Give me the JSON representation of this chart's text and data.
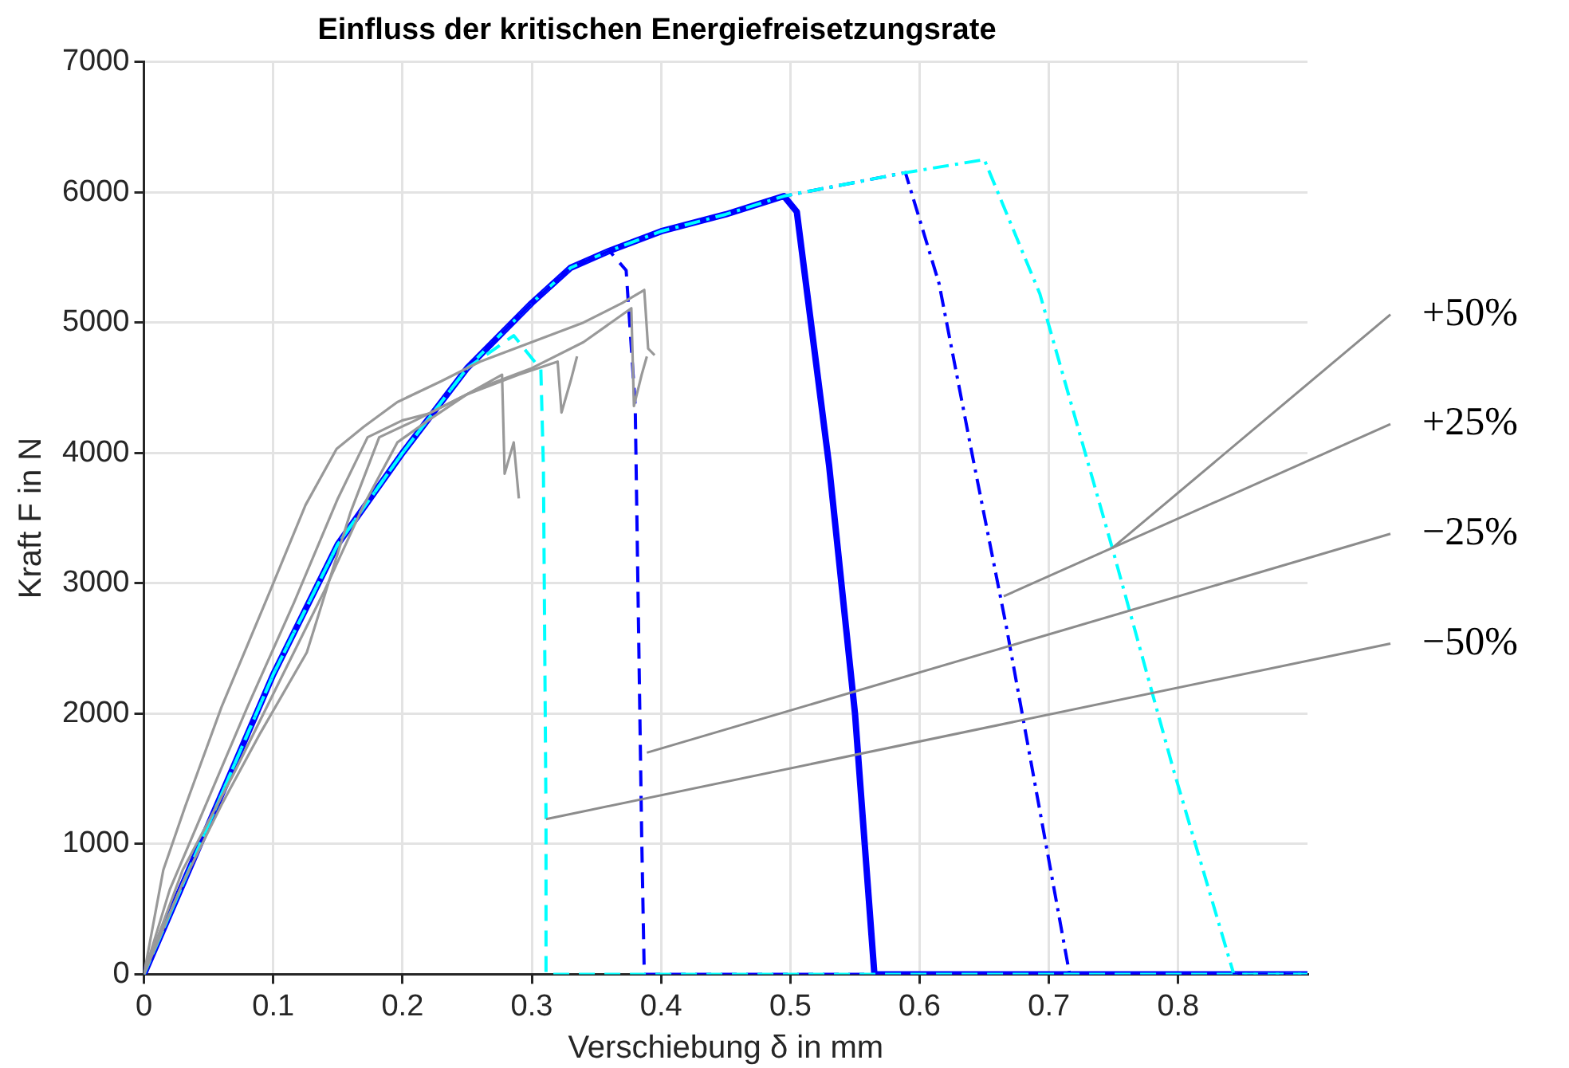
{
  "chart_data": {
    "type": "line",
    "title": "Einfluss der kritischen Energiefreisetzungsrate",
    "xlabel": "Verschiebung δ in mm",
    "ylabel": "Kraft F in N",
    "xlim": [
      0,
      0.9
    ],
    "xticks": [
      0,
      0.1,
      0.2,
      0.3,
      0.4,
      0.5,
      0.6,
      0.7,
      0.8
    ],
    "ylim": [
      0,
      7000
    ],
    "yticks": [
      0,
      1000,
      2000,
      3000,
      4000,
      5000,
      6000,
      7000
    ],
    "grid": true,
    "legend": false,
    "marker": "none",
    "series": [
      {
        "color": "#999999",
        "line_style": "solid",
        "x": [
          0,
          0.015,
          0.032,
          0.06,
          0.098,
          0.125,
          0.149,
          0.17,
          0.196,
          0.23,
          0.26,
          0.3,
          0.34,
          0.37,
          0.387,
          0.39,
          0.395
        ],
        "values": [
          0,
          800,
          1290,
          2050,
          2950,
          3600,
          4030,
          4200,
          4390,
          4550,
          4700,
          4850,
          5000,
          5150,
          5250,
          4800,
          4750
        ]
      },
      {
        "color": "#999999",
        "line_style": "solid",
        "x": [
          0,
          0.02,
          0.05,
          0.08,
          0.116,
          0.15,
          0.173,
          0.2,
          0.22,
          0.26,
          0.3,
          0.34,
          0.377,
          0.379,
          0.385,
          0.389
        ],
        "values": [
          0,
          650,
          1350,
          2050,
          2850,
          3650,
          4120,
          4250,
          4300,
          4500,
          4650,
          4850,
          5110,
          4360,
          4600,
          4740
        ]
      },
      {
        "color": "#999999",
        "line_style": "solid",
        "x": [
          0,
          0.03,
          0.06,
          0.09,
          0.126,
          0.16,
          0.182,
          0.21,
          0.25,
          0.29,
          0.32,
          0.323,
          0.33,
          0.335
        ],
        "values": [
          0,
          700,
          1300,
          1850,
          2470,
          3550,
          4120,
          4250,
          4450,
          4600,
          4700,
          4310,
          4550,
          4740
        ]
      },
      {
        "color": "#999999",
        "line_style": "solid",
        "x": [
          0,
          0.03,
          0.069,
          0.1,
          0.14,
          0.17,
          0.196,
          0.22,
          0.25,
          0.277,
          0.279,
          0.286,
          0.29
        ],
        "values": [
          0,
          800,
          1530,
          2150,
          2950,
          3600,
          4080,
          4250,
          4450,
          4600,
          3840,
          4080,
          3650
        ]
      },
      {
        "color": "#00ffff",
        "line_style": "dashed",
        "x": [
          0,
          0.05,
          0.1,
          0.15,
          0.2,
          0.25,
          0.286,
          0.307,
          0.309,
          0.311,
          0.311,
          0.9
        ],
        "values": [
          0,
          1150,
          2300,
          3300,
          4000,
          4650,
          4900,
          4640,
          3890,
          1190,
          0,
          0
        ]
      },
      {
        "color": "#0000ff",
        "line_style": "dashed",
        "x": [
          0,
          0.05,
          0.1,
          0.15,
          0.2,
          0.25,
          0.3,
          0.33,
          0.36,
          0.373,
          0.38,
          0.385,
          0.387,
          0.9
        ],
        "values": [
          0,
          1150,
          2300,
          3300,
          4000,
          4650,
          5150,
          5420,
          5550,
          5400,
          4360,
          1060,
          0,
          0
        ]
      },
      {
        "color": "#00ffff",
        "line_style": "dashdot",
        "x": [
          0,
          0.05,
          0.1,
          0.15,
          0.2,
          0.25,
          0.3,
          0.33,
          0.36,
          0.4,
          0.45,
          0.495,
          0.589,
          0.65,
          0.693,
          0.749,
          0.796,
          0.843,
          0.9
        ],
        "values": [
          0,
          1150,
          2300,
          3300,
          4000,
          4650,
          5150,
          5420,
          5550,
          5700,
          5830,
          5970,
          6150,
          6250,
          5220,
          3270,
          1580,
          0,
          0
        ]
      },
      {
        "color": "#0000ff",
        "line_style": "dashdot",
        "x": [
          0,
          0.05,
          0.1,
          0.15,
          0.2,
          0.25,
          0.3,
          0.33,
          0.36,
          0.4,
          0.45,
          0.495,
          0.589,
          0.615,
          0.641,
          0.667,
          0.716,
          0.9
        ],
        "values": [
          0,
          1150,
          2300,
          3300,
          4000,
          4650,
          5150,
          5420,
          5550,
          5700,
          5830,
          5970,
          6150,
          5300,
          3970,
          2670,
          0,
          0
        ]
      },
      {
        "color": "#0000ff",
        "line_style": "solid",
        "x": [
          0,
          0.05,
          0.1,
          0.15,
          0.2,
          0.25,
          0.3,
          0.33,
          0.36,
          0.4,
          0.45,
          0.495,
          0.505,
          0.53,
          0.55,
          0.565,
          0.9
        ],
        "values": [
          0,
          1150,
          2300,
          3300,
          4000,
          4650,
          5150,
          5420,
          5550,
          5700,
          5830,
          5970,
          5850,
          3900,
          2000,
          0,
          0
        ]
      }
    ],
    "annotations": [
      {
        "text": "+50%",
        "x": 0.749,
        "y": 3270
      },
      {
        "text": "+25%",
        "x": 0.665,
        "y": 2900
      },
      {
        "text": "−25%",
        "x": 0.389,
        "y": 1700
      },
      {
        "text": "−50%",
        "x": 0.311,
        "y": 1190
      }
    ]
  }
}
